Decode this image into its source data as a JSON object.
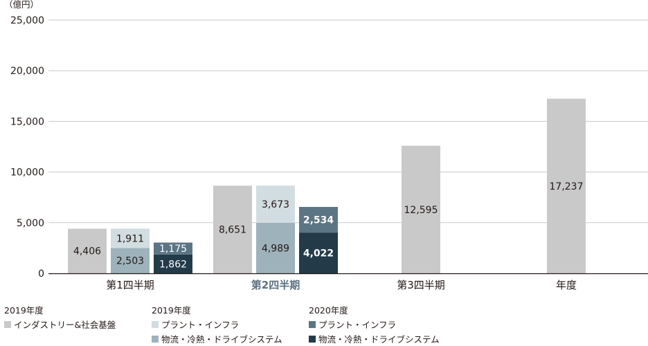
{
  "chart_data": {
    "type": "bar",
    "unit_label": "（億円）",
    "ylim": [
      0,
      25000
    ],
    "y_ticks": [
      "0",
      "5,000",
      "10,000",
      "15,000",
      "20,000",
      "25,000"
    ],
    "y_tick_values": [
      0,
      5000,
      10000,
      15000,
      20000,
      25000
    ],
    "grid": true,
    "categories": [
      "第1四半期",
      "第2四半期",
      "第3四半期",
      "年度"
    ],
    "highlight_category": "第2四半期",
    "bars": [
      {
        "category": "第1四半期",
        "group": "2019年度 インダストリー&社会基盤",
        "segments": [
          {
            "value": 4406,
            "label": "4,406",
            "color": "#c9c9c9"
          }
        ]
      },
      {
        "category": "第1四半期",
        "group": "2019年度",
        "segments": [
          {
            "series": "物流・冷熱・ドライブシステム",
            "value": 2503,
            "label": "2,503",
            "color": "#9eb2bb"
          },
          {
            "series": "プラント・インフラ",
            "value": 1911,
            "label": "1,911",
            "color": "#d2dde1"
          }
        ]
      },
      {
        "category": "第1四半期",
        "group": "2020年度",
        "segments": [
          {
            "series": "物流・冷熱・ドライブシステム",
            "value": 1862,
            "label": "1,862",
            "color": "#233a48"
          },
          {
            "series": "プラント・インフラ",
            "value": 1175,
            "label": "1,175",
            "color": "#5c7584"
          }
        ]
      },
      {
        "category": "第2四半期",
        "group": "2019年度 インダストリー&社会基盤",
        "segments": [
          {
            "value": 8651,
            "label": "8,651",
            "color": "#c9c9c9"
          }
        ]
      },
      {
        "category": "第2四半期",
        "group": "2019年度",
        "segments": [
          {
            "series": "物流・冷熱・ドライブシステム",
            "value": 4989,
            "label": "4,989",
            "color": "#9eb2bb"
          },
          {
            "series": "プラント・インフラ",
            "value": 3673,
            "label": "3,673",
            "color": "#d2dde1"
          }
        ]
      },
      {
        "category": "第2四半期",
        "group": "2020年度",
        "segments": [
          {
            "series": "物流・冷熱・ドライブシステム",
            "value": 4022,
            "label": "4,022",
            "color": "#233a48"
          },
          {
            "series": "プラント・インフラ",
            "value": 2534,
            "label": "2,534",
            "color": "#5c7584"
          }
        ]
      },
      {
        "category": "第3四半期",
        "group": "2019年度 インダストリー&社会基盤",
        "segments": [
          {
            "value": 12595,
            "label": "12,595",
            "color": "#c9c9c9"
          }
        ]
      },
      {
        "category": "年度",
        "group": "2019年度 インダストリー&社会基盤",
        "segments": [
          {
            "value": 17237,
            "label": "17,237",
            "color": "#c9c9c9"
          }
        ]
      }
    ],
    "legend": [
      {
        "title": "2019年度",
        "items": [
          {
            "label": "インダストリー&社会基盤",
            "color": "#c9c9c9"
          }
        ]
      },
      {
        "title": "2019年度",
        "items": [
          {
            "label": "プラント・インフラ",
            "color": "#d2dde1"
          },
          {
            "label": "物流・冷熱・ドライブシステム",
            "color": "#9eb2bb"
          }
        ]
      },
      {
        "title": "2020年度",
        "items": [
          {
            "label": "プラント・インフラ",
            "color": "#5c7584"
          },
          {
            "label": "物流・冷熱・ドライブシステム",
            "color": "#233a48"
          }
        ]
      }
    ],
    "colors": {
      "text": "#231815",
      "highlight": "#5a7180",
      "grid": "#c8c8c8",
      "axis": "#231815"
    }
  }
}
